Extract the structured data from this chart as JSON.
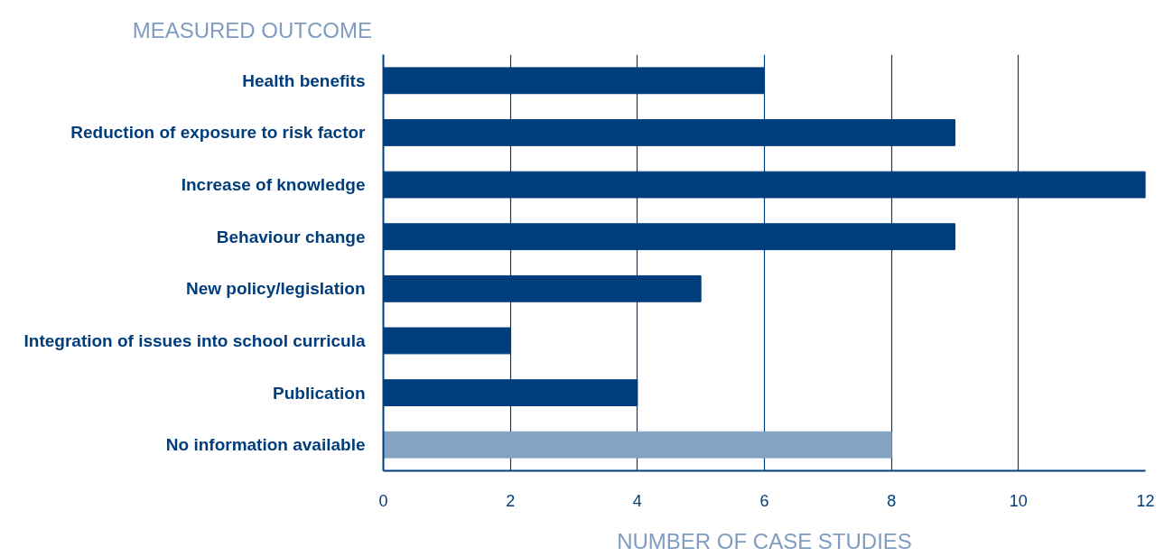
{
  "chart_data": {
    "type": "bar",
    "orientation": "horizontal",
    "ylabel": "MEASURED OUTCOME",
    "xlabel": "NUMBER OF CASE STUDIES",
    "categories": [
      "Health benefits",
      "Reduction of exposure to risk factor",
      "Increase of knowledge",
      "Behaviour change",
      "New policy/legislation",
      "Integration of issues into school curricula",
      "Publication",
      "No information available"
    ],
    "values": [
      6,
      9,
      12,
      9,
      5,
      2,
      4,
      8
    ],
    "colors": [
      "#003d7c",
      "#003d7c",
      "#003d7c",
      "#003d7c",
      "#003d7c",
      "#003d7c",
      "#003d7c",
      "#84a3c3"
    ],
    "xlim": [
      0,
      12
    ],
    "xticks": [
      0,
      2,
      4,
      6,
      8,
      10,
      12
    ],
    "grid": "x"
  }
}
